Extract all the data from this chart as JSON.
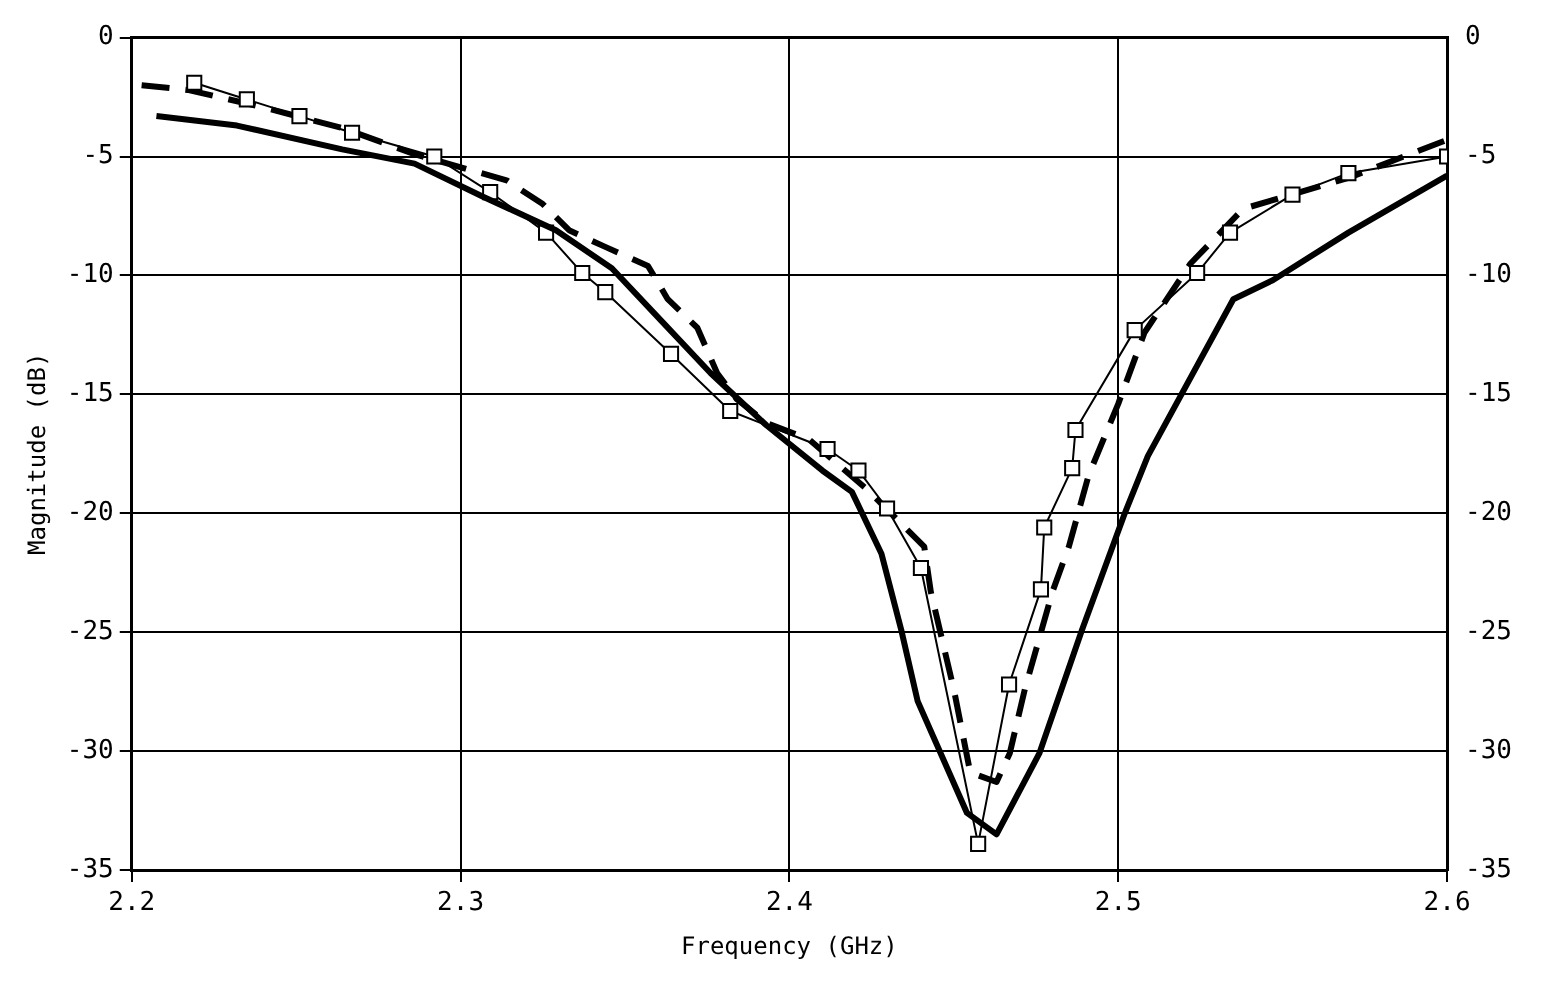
{
  "chart_data": {
    "type": "line",
    "xlabel": "Frequency (GHz)",
    "ylabel": "Magnitude (dB)",
    "xlim": [
      2.2,
      2.6
    ],
    "xticks": [
      2.2,
      2.3,
      2.4,
      2.5,
      2.6
    ],
    "ylim": [
      -35,
      0
    ],
    "yticks": [
      0,
      -5,
      -10,
      -15,
      -20,
      -25,
      -30,
      -35
    ],
    "y2lim": [
      -35,
      0
    ],
    "y2ticks": [
      0,
      -5,
      -10,
      -15,
      -20,
      -25,
      -30,
      -35
    ],
    "grid": true,
    "legend": false,
    "series": [
      {
        "color": "#000000",
        "line_style": "solid",
        "marker": "none",
        "x": [
          2.2075,
          2.232,
          2.264,
          2.286,
          2.307,
          2.329,
          2.346,
          2.361,
          2.376,
          2.393,
          2.41,
          2.419,
          2.428,
          2.434,
          2.439,
          2.454,
          2.463,
          2.476,
          2.489,
          2.502,
          2.509,
          2.535,
          2.547,
          2.57,
          2.6
        ],
        "values": [
          -3.3,
          -3.7,
          -4.7,
          -5.3,
          -6.7,
          -8.1,
          -9.7,
          -11.9,
          -14.1,
          -16.3,
          -18.2,
          -19.1,
          -21.7,
          -24.9,
          -27.9,
          -32.6,
          -33.5,
          -30.1,
          -24.9,
          -20,
          -17.6,
          -11,
          -10.2,
          -8.2,
          -5.8
        ]
      },
      {
        "color": "#000000",
        "line_style": "solid",
        "marker": "square",
        "x": [
          2.219,
          2.235,
          2.251,
          2.267,
          2.292,
          2.309,
          2.326,
          2.337,
          2.344,
          2.364,
          2.382,
          2.4116,
          2.421,
          2.4297,
          2.44,
          2.4574,
          2.4668,
          2.4765,
          2.4775,
          2.486,
          2.487,
          2.505,
          2.524,
          2.534,
          2.553,
          2.57,
          2.6
        ],
        "values": [
          -1.9,
          -2.6,
          -3.3,
          -4,
          -5,
          -6.5,
          -8.2,
          -9.9,
          -10.7,
          -13.3,
          -15.7,
          -17.3,
          -18.2,
          -19.8,
          -22.3,
          -33.9,
          -27.2,
          -23.2,
          -20.6,
          -18.1,
          -16.5,
          -12.3,
          -9.9,
          -8.2,
          -6.6,
          -5.7,
          -5
        ]
      },
      {
        "color": "#000000",
        "line_style": "dashed",
        "marker": "none",
        "x": [
          2.203,
          2.217,
          2.239,
          2.264,
          2.286,
          2.314,
          2.325,
          2.333,
          2.344,
          2.357,
          2.363,
          2.372,
          2.378,
          2.384,
          2.393,
          2.406,
          2.4236,
          2.441,
          2.443,
          2.45,
          2.455,
          2.463,
          2.467,
          2.4716,
          2.48,
          2.485,
          2.491,
          2.5,
          2.508,
          2.522,
          2.538,
          2.57,
          2.6
        ],
        "values": [
          -2,
          -2.2,
          -2.9,
          -3.8,
          -4.9,
          -6,
          -7,
          -8.1,
          -8.8,
          -9.6,
          -11,
          -12.2,
          -14.1,
          -15.2,
          -16.2,
          -16.9,
          -19,
          -21.4,
          -23.3,
          -27.4,
          -30.9,
          -31.3,
          -30.1,
          -27.4,
          -23.3,
          -21.4,
          -18.4,
          -15.4,
          -12.4,
          -9.5,
          -7.2,
          -5.9,
          -4.3
        ]
      }
    ]
  }
}
